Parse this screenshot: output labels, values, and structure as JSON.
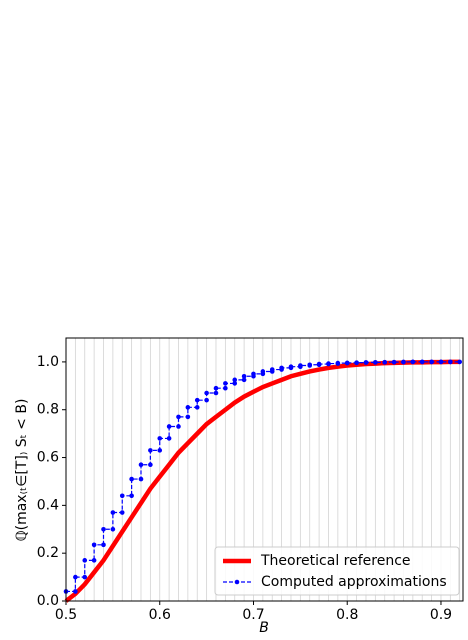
{
  "chart_data": {
    "type": "line",
    "xlabel": "B",
    "ylabel": "ℚ(max₍ₜ∈[T]₎ Sₜ < B)",
    "xlim": [
      0.5,
      0.9235
    ],
    "ylim": [
      0,
      1.1
    ],
    "xticks": [
      0.5,
      0.6,
      0.7,
      0.8,
      0.9
    ],
    "yticks": [
      {
        "value": 0,
        "label": "0.0"
      },
      0.2,
      0.4,
      0.6,
      0.8,
      {
        "value": 1,
        "label": "1.0"
      }
    ],
    "grid": true,
    "legend": "lower right",
    "series": [
      {
        "name": "Theoretical reference",
        "color": "#ff0000",
        "linestyle": "solid",
        "x": [
          0.5,
          0.51,
          0.52,
          0.53,
          0.54,
          0.55,
          0.56,
          0.57,
          0.58,
          0.59,
          0.6,
          0.61,
          0.62,
          0.63,
          0.64,
          0.65,
          0.66,
          0.67,
          0.68,
          0.69,
          0.7,
          0.71,
          0.72,
          0.73,
          0.74,
          0.75,
          0.76,
          0.77,
          0.78,
          0.79,
          0.8,
          0.81,
          0.82,
          0.83,
          0.84,
          0.85,
          0.86,
          0.87,
          0.88,
          0.89,
          0.9,
          0.91,
          0.92
        ],
        "values": [
          0,
          0.03,
          0.07,
          0.12,
          0.17,
          0.23,
          0.29,
          0.35,
          0.41,
          0.47,
          0.52,
          0.57,
          0.62,
          0.66,
          0.7,
          0.74,
          0.77,
          0.8,
          0.83,
          0.855,
          0.875,
          0.895,
          0.91,
          0.925,
          0.94,
          0.95,
          0.96,
          0.968,
          0.975,
          0.98,
          0.985,
          0.988,
          0.991,
          0.993,
          0.995,
          0.996,
          0.997,
          0.998,
          0.998,
          0.999,
          0.999,
          1,
          1
        ]
      },
      {
        "name": "Computed approximations",
        "color": "#0000ff",
        "linestyle": "dashed",
        "marker": "o",
        "x": [
          0.5,
          0.51,
          0.51,
          0.52,
          0.52,
          0.53,
          0.53,
          0.54,
          0.54,
          0.55,
          0.55,
          0.56,
          0.56,
          0.57,
          0.57,
          0.58,
          0.58,
          0.59,
          0.59,
          0.6,
          0.6,
          0.61,
          0.61,
          0.62,
          0.62,
          0.63,
          0.63,
          0.64,
          0.64,
          0.65,
          0.65,
          0.66,
          0.66,
          0.67,
          0.67,
          0.68,
          0.68,
          0.69,
          0.69,
          0.7,
          0.7,
          0.71,
          0.71,
          0.72,
          0.72,
          0.73,
          0.73,
          0.74,
          0.74,
          0.75,
          0.75,
          0.76,
          0.76,
          0.77,
          0.77,
          0.78,
          0.78,
          0.79,
          0.79,
          0.8,
          0.8,
          0.81,
          0.81,
          0.82,
          0.82,
          0.83,
          0.83,
          0.84,
          0.84,
          0.85,
          0.85,
          0.86,
          0.86,
          0.87,
          0.87,
          0.88,
          0.88,
          0.89,
          0.89,
          0.9,
          0.9,
          0.91,
          0.91,
          0.92
        ],
        "values": [
          0.04,
          0.04,
          0.1,
          0.1,
          0.17,
          0.17,
          0.235,
          0.235,
          0.3,
          0.3,
          0.37,
          0.37,
          0.44,
          0.44,
          0.51,
          0.51,
          0.57,
          0.57,
          0.63,
          0.63,
          0.68,
          0.68,
          0.73,
          0.73,
          0.77,
          0.77,
          0.81,
          0.81,
          0.84,
          0.84,
          0.87,
          0.87,
          0.89,
          0.89,
          0.91,
          0.91,
          0.925,
          0.925,
          0.94,
          0.94,
          0.95,
          0.95,
          0.96,
          0.96,
          0.968,
          0.968,
          0.975,
          0.975,
          0.98,
          0.98,
          0.985,
          0.985,
          0.988,
          0.988,
          0.991,
          0.991,
          0.993,
          0.993,
          0.995,
          0.995,
          0.996,
          0.996,
          0.997,
          0.997,
          0.998,
          0.998,
          0.998,
          0.998,
          0.999,
          0.999,
          0.999,
          0.999,
          1,
          1,
          1,
          1,
          1,
          1,
          1,
          1,
          1,
          1,
          1,
          1
        ]
      }
    ]
  }
}
